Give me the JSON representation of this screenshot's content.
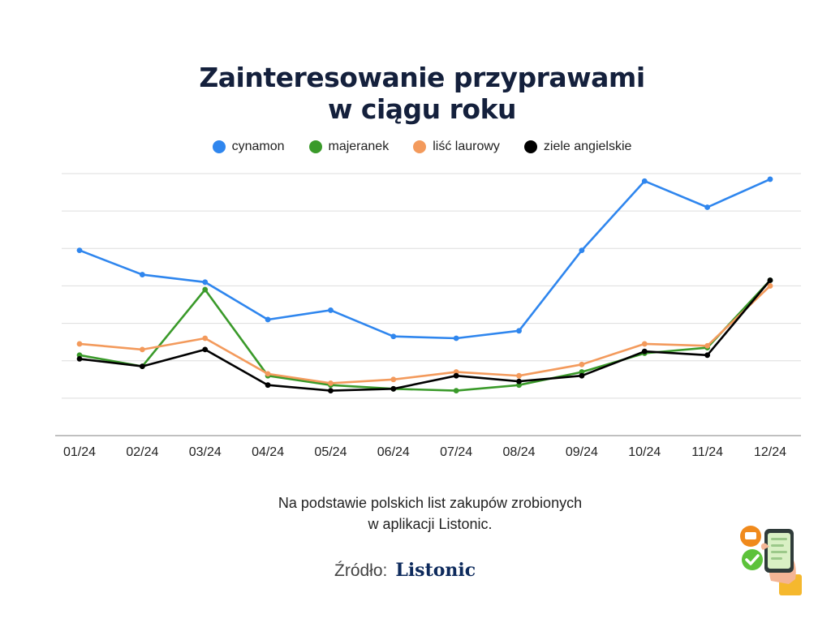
{
  "title": {
    "line1": "Zainteresowanie przyprawami",
    "line2": "w ciągu roku"
  },
  "note": {
    "line1": "Na podstawie polskich list zakupów zrobionych",
    "line2": "w aplikacji Listonic."
  },
  "source": {
    "label": "Źródło:",
    "brand": "Listonic"
  },
  "icons": {
    "illustration": "hand-holding-phone-with-checklist-icon"
  },
  "chart_data": {
    "type": "line",
    "title": "Zainteresowanie przyprawami w ciągu roku",
    "xlabel": "",
    "ylabel": "",
    "categories": [
      "01/24",
      "02/24",
      "03/24",
      "04/24",
      "05/24",
      "06/24",
      "07/24",
      "08/24",
      "09/24",
      "10/24",
      "11/24",
      "12/24"
    ],
    "ylim": [
      0,
      7
    ],
    "yticks": [
      0,
      1,
      2,
      3,
      4,
      5,
      6,
      7
    ],
    "y_tick_labels_shown": false,
    "grid": "horizontal",
    "legend_position": "top",
    "series": [
      {
        "name": "cynamon",
        "color": "#2f86ee",
        "values": [
          4.95,
          4.3,
          4.1,
          3.1,
          3.35,
          2.65,
          2.6,
          2.8,
          4.95,
          6.8,
          6.1,
          6.85
        ]
      },
      {
        "name": "majeranek",
        "color": "#3a9a2a",
        "values": [
          2.15,
          1.85,
          3.9,
          1.6,
          1.35,
          1.25,
          1.2,
          1.35,
          1.7,
          2.2,
          2.35,
          4.15
        ]
      },
      {
        "name": "liść laurowy",
        "color": "#f39a5c",
        "values": [
          2.45,
          2.3,
          2.6,
          1.65,
          1.4,
          1.5,
          1.7,
          1.6,
          1.9,
          2.45,
          2.4,
          4.0
        ]
      },
      {
        "name": "ziele angielskie",
        "color": "#000000",
        "values": [
          2.05,
          1.85,
          2.3,
          1.35,
          1.2,
          1.25,
          1.6,
          1.45,
          1.6,
          2.25,
          2.15,
          4.15
        ]
      }
    ]
  }
}
